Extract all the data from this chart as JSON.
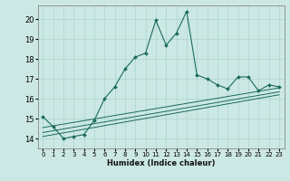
{
  "title": "",
  "xlabel": "Humidex (Indice chaleur)",
  "ylabel": "",
  "bg_color": "#cce8e4",
  "grid_color": "#aad4cc",
  "line_color": "#1a6b5a",
  "xlim": [
    -0.5,
    23.5
  ],
  "ylim": [
    13.5,
    20.7
  ],
  "yticks": [
    14,
    15,
    16,
    17,
    18,
    19,
    20
  ],
  "xticks": [
    0,
    1,
    2,
    3,
    4,
    5,
    6,
    7,
    8,
    9,
    10,
    11,
    12,
    13,
    14,
    15,
    16,
    17,
    18,
    19,
    20,
    21,
    22,
    23
  ],
  "main_line_x": [
    0,
    1,
    2,
    3,
    4,
    5,
    6,
    7,
    8,
    9,
    10,
    11,
    12,
    13,
    14,
    15,
    16,
    17,
    18,
    19,
    20,
    21,
    22,
    23
  ],
  "main_line_y": [
    15.1,
    14.6,
    14.0,
    14.1,
    14.2,
    14.9,
    16.0,
    16.6,
    17.5,
    18.1,
    18.3,
    19.95,
    18.7,
    19.3,
    20.4,
    17.2,
    17.0,
    16.7,
    16.5,
    17.1,
    17.1,
    16.4,
    16.7,
    16.6
  ],
  "line2_x": [
    0,
    23
  ],
  "line2_y": [
    14.55,
    16.55
  ],
  "line3_x": [
    0,
    23
  ],
  "line3_y": [
    14.3,
    16.35
  ],
  "line4_x": [
    0,
    23
  ],
  "line4_y": [
    14.1,
    16.2
  ]
}
